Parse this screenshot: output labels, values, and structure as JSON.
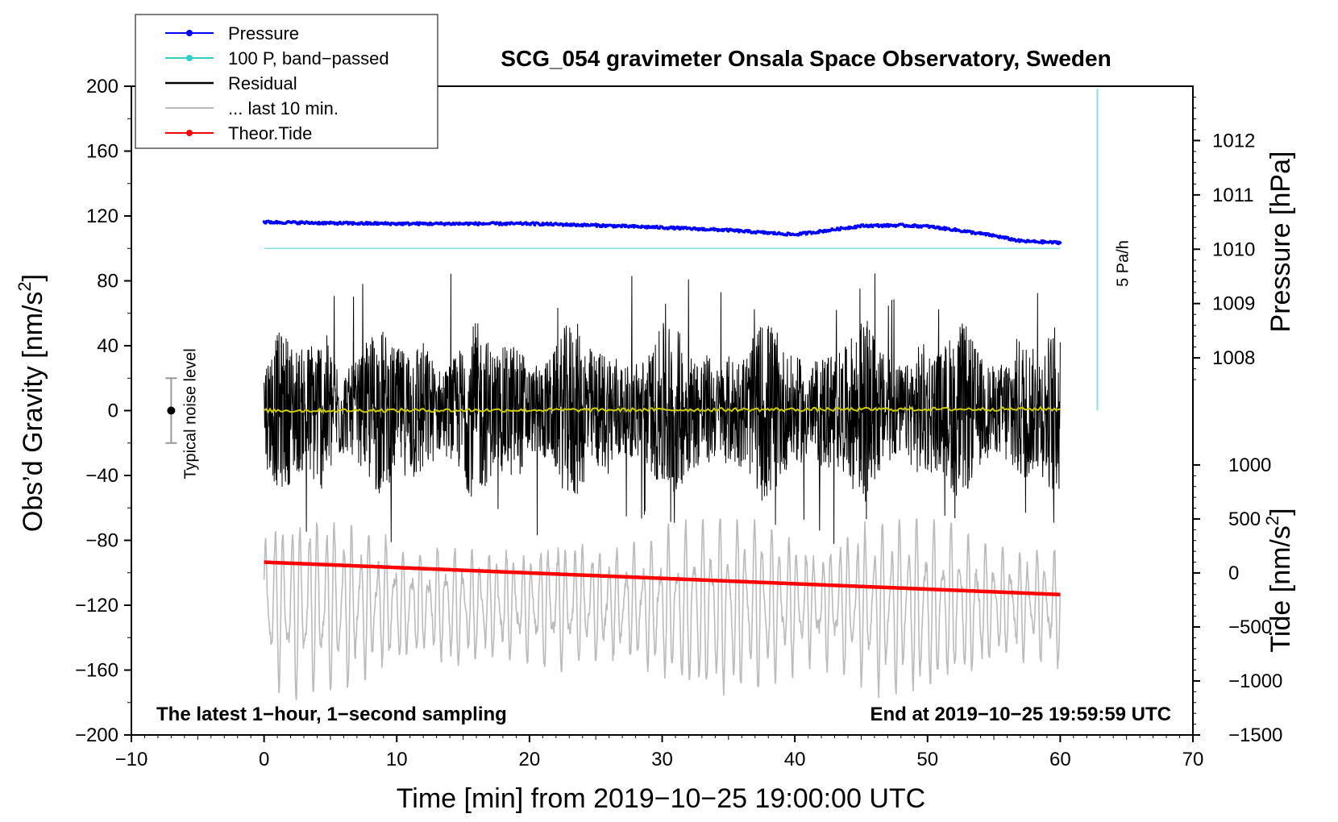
{
  "chart_data": {
    "type": "line",
    "title": "SCG_054 gravimeter Onsala Space Observatory, Sweden",
    "xlabel": "Time [min] from 2019−10−25 19:00:00 UTC",
    "ylabel_left_main": "Obs’d Gravity [nm/s",
    "ylabel_left_sup": "2",
    "ylabel_left_end": "]",
    "ylabel_right_top": "Pressure [hPa]",
    "ylabel_right_bottom_main": "Tide [nm/s",
    "ylabel_right_bottom_sup": "2",
    "ylabel_right_bottom_end": "]",
    "xlim": [
      -10,
      70
    ],
    "ylim": [
      -200,
      200
    ],
    "x_ticks": [
      -10,
      0,
      10,
      20,
      30,
      40,
      50,
      60,
      70
    ],
    "x_tick_labels": [
      "−10",
      "0",
      "10",
      "20",
      "30",
      "40",
      "50",
      "60",
      "70"
    ],
    "y_ticks": [
      200,
      160,
      120,
      80,
      40,
      0,
      -40,
      -80,
      -120,
      -160,
      -200
    ],
    "y_tick_labels": [
      "200",
      "160",
      "120",
      "80",
      "40",
      "0",
      "−40",
      "−80",
      "−120",
      "−160",
      "−200"
    ],
    "pressure_axis": {
      "ticks": [
        1012,
        1011,
        1010,
        1009,
        1008
      ],
      "tick_labels": [
        "1012",
        "1011",
        "1010",
        "1009",
        "1008"
      ],
      "gravity_equiv": [
        [
          1012,
          166.5
        ],
        [
          1008,
          32.5
        ]
      ]
    },
    "tide_axis": {
      "ticks": [
        1000,
        500,
        0,
        -500,
        -1000,
        -1500
      ],
      "tick_labels": [
        "1000",
        "500",
        "0",
        "−500",
        "−1000",
        "−1500"
      ],
      "gravity_equiv": [
        [
          1000,
          -33.5
        ],
        [
          -1500,
          -200
        ]
      ]
    },
    "legend": {
      "position": "top-left",
      "entries": [
        {
          "label": "Pressure",
          "color": "#0000ff",
          "marker": "dot"
        },
        {
          "label": "100 P, band−passed",
          "color": "#33cccc",
          "marker": "dot"
        },
        {
          "label": "Residual",
          "color": "#000000",
          "marker": "none"
        },
        {
          "label": "... last 10 min.",
          "color": "#bbbbbb",
          "marker": "none"
        },
        {
          "label": "Theor.Tide",
          "color": "#ff0000",
          "marker": "dot"
        }
      ]
    },
    "series": [
      {
        "name": "Pressure",
        "color": "#0000ff",
        "axis": "pressure",
        "x": [
          0,
          5,
          10,
          15,
          20,
          25,
          30,
          35,
          38,
          40,
          42,
          45,
          48,
          50,
          52,
          55,
          57,
          60
        ],
        "y": [
          1010.5,
          1010.48,
          1010.47,
          1010.47,
          1010.47,
          1010.44,
          1010.4,
          1010.35,
          1010.3,
          1010.27,
          1010.33,
          1010.43,
          1010.44,
          1010.42,
          1010.36,
          1010.25,
          1010.15,
          1010.12
        ]
      },
      {
        "name": "100 P, band−passed",
        "color": "#88dddd",
        "axis": "gravity",
        "x": [
          0,
          60
        ],
        "y": [
          100,
          100
        ]
      },
      {
        "name": "Residual",
        "color": "#000000",
        "axis": "gravity",
        "x_range": [
          0,
          60
        ],
        "typical_range": [
          -55,
          55
        ],
        "max": 97,
        "min": -87
      },
      {
        "name": "Residual (smoothed)",
        "color": "#cccc00",
        "axis": "gravity",
        "x": [
          0,
          60
        ],
        "y": [
          0,
          1
        ]
      },
      {
        "name": "... last 10 min.",
        "color": "#bbbbbb",
        "axis": "gravity",
        "x_range": [
          0,
          60
        ],
        "center": -120,
        "typical_range": [
          -185,
          -75
        ],
        "min": -197,
        "max": -67
      },
      {
        "name": "Theor.Tide",
        "color": "#ff0000",
        "axis": "tide",
        "x": [
          0,
          10,
          20,
          30,
          40,
          50,
          60
        ],
        "y": [
          100,
          50,
          0,
          -50,
          -100,
          -150,
          -200
        ]
      }
    ],
    "rate_marker": {
      "label": "5 Pa/h",
      "x": 62.8,
      "y_from": 0,
      "y_to": 200,
      "color": "#88dddd"
    },
    "noise_level": {
      "label": "Typical noise level",
      "x": -7,
      "center": 0,
      "low": -20,
      "high": 20
    },
    "annotations": {
      "bottom_left": "The latest 1−hour, 1−second sampling",
      "bottom_right": "End at 2019−10−25 19:59:59 UTC"
    }
  }
}
